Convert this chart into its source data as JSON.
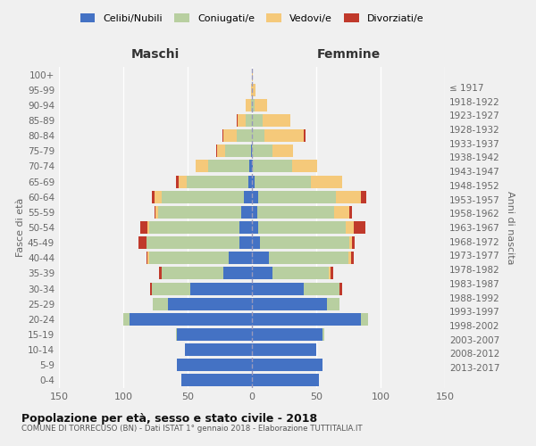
{
  "age_groups": [
    "100+",
    "95-99",
    "90-94",
    "85-89",
    "80-84",
    "75-79",
    "70-74",
    "65-69",
    "60-64",
    "55-59",
    "50-54",
    "45-49",
    "40-44",
    "35-39",
    "30-34",
    "25-29",
    "20-24",
    "15-19",
    "10-14",
    "5-9",
    "0-4"
  ],
  "birth_years": [
    "≤ 1917",
    "1918-1922",
    "1923-1927",
    "1928-1932",
    "1933-1937",
    "1938-1942",
    "1943-1947",
    "1948-1952",
    "1953-1957",
    "1958-1962",
    "1963-1967",
    "1968-1972",
    "1973-1977",
    "1978-1982",
    "1983-1987",
    "1988-1992",
    "1993-1997",
    "1998-2002",
    "2003-2007",
    "2008-2012",
    "2013-2017"
  ],
  "colors": {
    "celibi": "#4472c4",
    "coniugati": "#b8cfa0",
    "vedovi": "#f5c97a",
    "divorziati": "#c0392b"
  },
  "males": {
    "celibi": [
      0,
      0,
      0,
      0,
      0,
      1,
      2,
      3,
      6,
      8,
      10,
      10,
      18,
      22,
      48,
      65,
      95,
      58,
      52,
      58,
      55
    ],
    "coniugati": [
      0,
      0,
      1,
      5,
      12,
      20,
      32,
      48,
      64,
      65,
      70,
      72,
      62,
      48,
      30,
      12,
      5,
      1,
      0,
      0,
      0
    ],
    "vedovi": [
      0,
      1,
      4,
      6,
      10,
      6,
      10,
      6,
      6,
      2,
      1,
      0,
      1,
      0,
      0,
      0,
      0,
      0,
      0,
      0,
      0
    ],
    "divorziati": [
      0,
      0,
      0,
      1,
      1,
      1,
      0,
      2,
      2,
      1,
      6,
      6,
      1,
      2,
      1,
      0,
      0,
      0,
      0,
      0,
      0
    ]
  },
  "females": {
    "nubili": [
      0,
      0,
      0,
      0,
      0,
      0,
      1,
      2,
      5,
      4,
      5,
      6,
      13,
      16,
      40,
      58,
      85,
      55,
      50,
      55,
      52
    ],
    "coniugate": [
      0,
      0,
      2,
      8,
      10,
      16,
      30,
      44,
      60,
      60,
      68,
      70,
      62,
      44,
      28,
      10,
      5,
      1,
      0,
      0,
      0
    ],
    "vedove": [
      1,
      3,
      10,
      22,
      30,
      16,
      20,
      24,
      20,
      12,
      6,
      2,
      2,
      1,
      0,
      0,
      0,
      0,
      0,
      0,
      0
    ],
    "divorziate": [
      0,
      0,
      0,
      0,
      2,
      0,
      0,
      0,
      4,
      2,
      9,
      2,
      2,
      2,
      2,
      0,
      0,
      0,
      0,
      0,
      0
    ]
  },
  "title": "Popolazione per età, sesso e stato civile - 2018",
  "subtitle": "COMUNE DI TORRECUSO (BN) - Dati ISTAT 1° gennaio 2018 - Elaborazione TUTTITALIA.IT",
  "xlabel_left": "Maschi",
  "xlabel_right": "Femmine",
  "ylabel_left": "Fasce di età",
  "ylabel_right": "Anni di nascita",
  "xlim": 150,
  "legend_labels": [
    "Celibi/Nubili",
    "Coniugati/e",
    "Vedovi/e",
    "Divorziati/e"
  ],
  "background_color": "#f0f0f0"
}
